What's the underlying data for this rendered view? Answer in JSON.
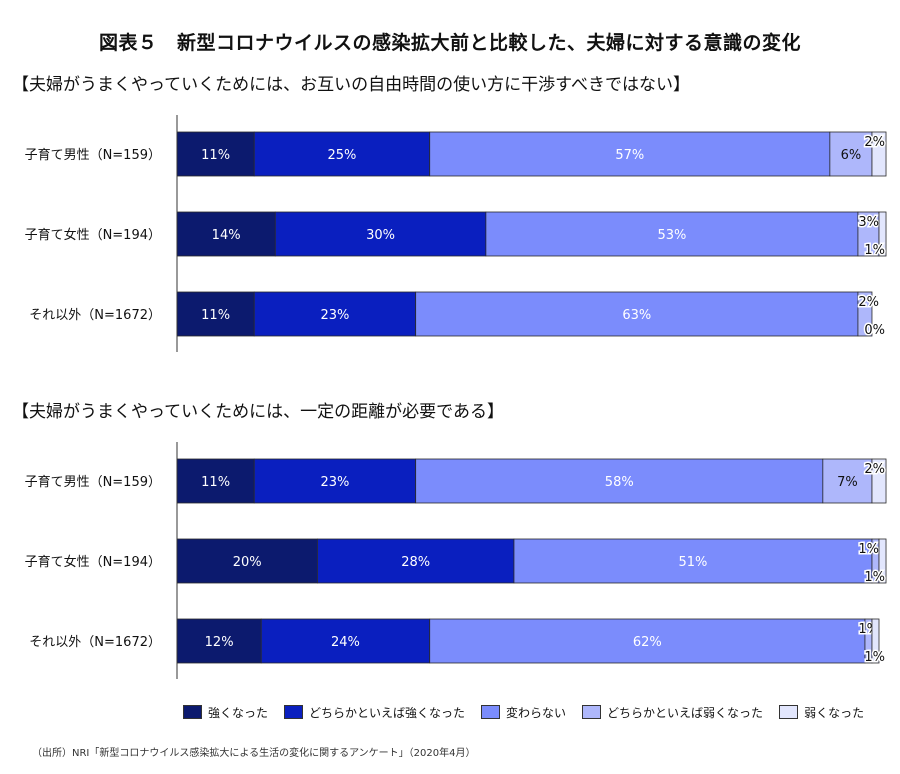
{
  "title": "図表５　新型コロナウイルスの感染拡大前と比較した、夫婦に対する意識の変化",
  "legend": [
    {
      "label": "強くなった",
      "color": "#0c1a6e"
    },
    {
      "label": "どちらかといえば強くなった",
      "color": "#0a1fbf"
    },
    {
      "label": "変わらない",
      "color": "#7b8cfc"
    },
    {
      "label": "どちらかといえば弱くなった",
      "color": "#aeb7fb"
    },
    {
      "label": "弱くなった",
      "color": "#e2e6fd"
    }
  ],
  "source": "（出所）NRI「新型コロナウイルス感染拡大による生活の変化に関するアンケート」（2020年4月）",
  "chart_data": [
    {
      "type": "bar",
      "orientation": "horizontal",
      "stacked": true,
      "percent": true,
      "title": "【夫婦がうまくやっていくためには、お互いの自由時間の使い方に干渉すべきではない】",
      "categories": [
        "子育て男性（N=159）",
        "子育て女性（N=194）",
        "それ以外（N=1672）"
      ],
      "series": [
        {
          "name": "強くなった",
          "values": [
            11,
            14,
            11
          ]
        },
        {
          "name": "どちらかといえば強くなった",
          "values": [
            25,
            30,
            23
          ]
        },
        {
          "name": "変わらない",
          "values": [
            57,
            53,
            63
          ]
        },
        {
          "name": "どちらかといえば弱くなった",
          "values": [
            6,
            3,
            2
          ]
        },
        {
          "name": "弱くなった",
          "values": [
            2,
            1,
            0
          ]
        }
      ],
      "xlim": [
        0,
        100
      ]
    },
    {
      "type": "bar",
      "orientation": "horizontal",
      "stacked": true,
      "percent": true,
      "title": "【夫婦がうまくやっていくためには、一定の距離が必要である】",
      "categories": [
        "子育て男性（N=159）",
        "子育て女性（N=194）",
        "それ以外（N=1672）"
      ],
      "series": [
        {
          "name": "強くなった",
          "values": [
            11,
            20,
            12
          ]
        },
        {
          "name": "どちらかといえば強くなった",
          "values": [
            23,
            28,
            24
          ]
        },
        {
          "name": "変わらない",
          "values": [
            58,
            51,
            62
          ]
        },
        {
          "name": "どちらかといえば弱くなった",
          "values": [
            7,
            1,
            1
          ]
        },
        {
          "name": "弱くなった",
          "values": [
            2,
            1,
            1
          ]
        }
      ],
      "xlim": [
        0,
        100
      ]
    }
  ]
}
